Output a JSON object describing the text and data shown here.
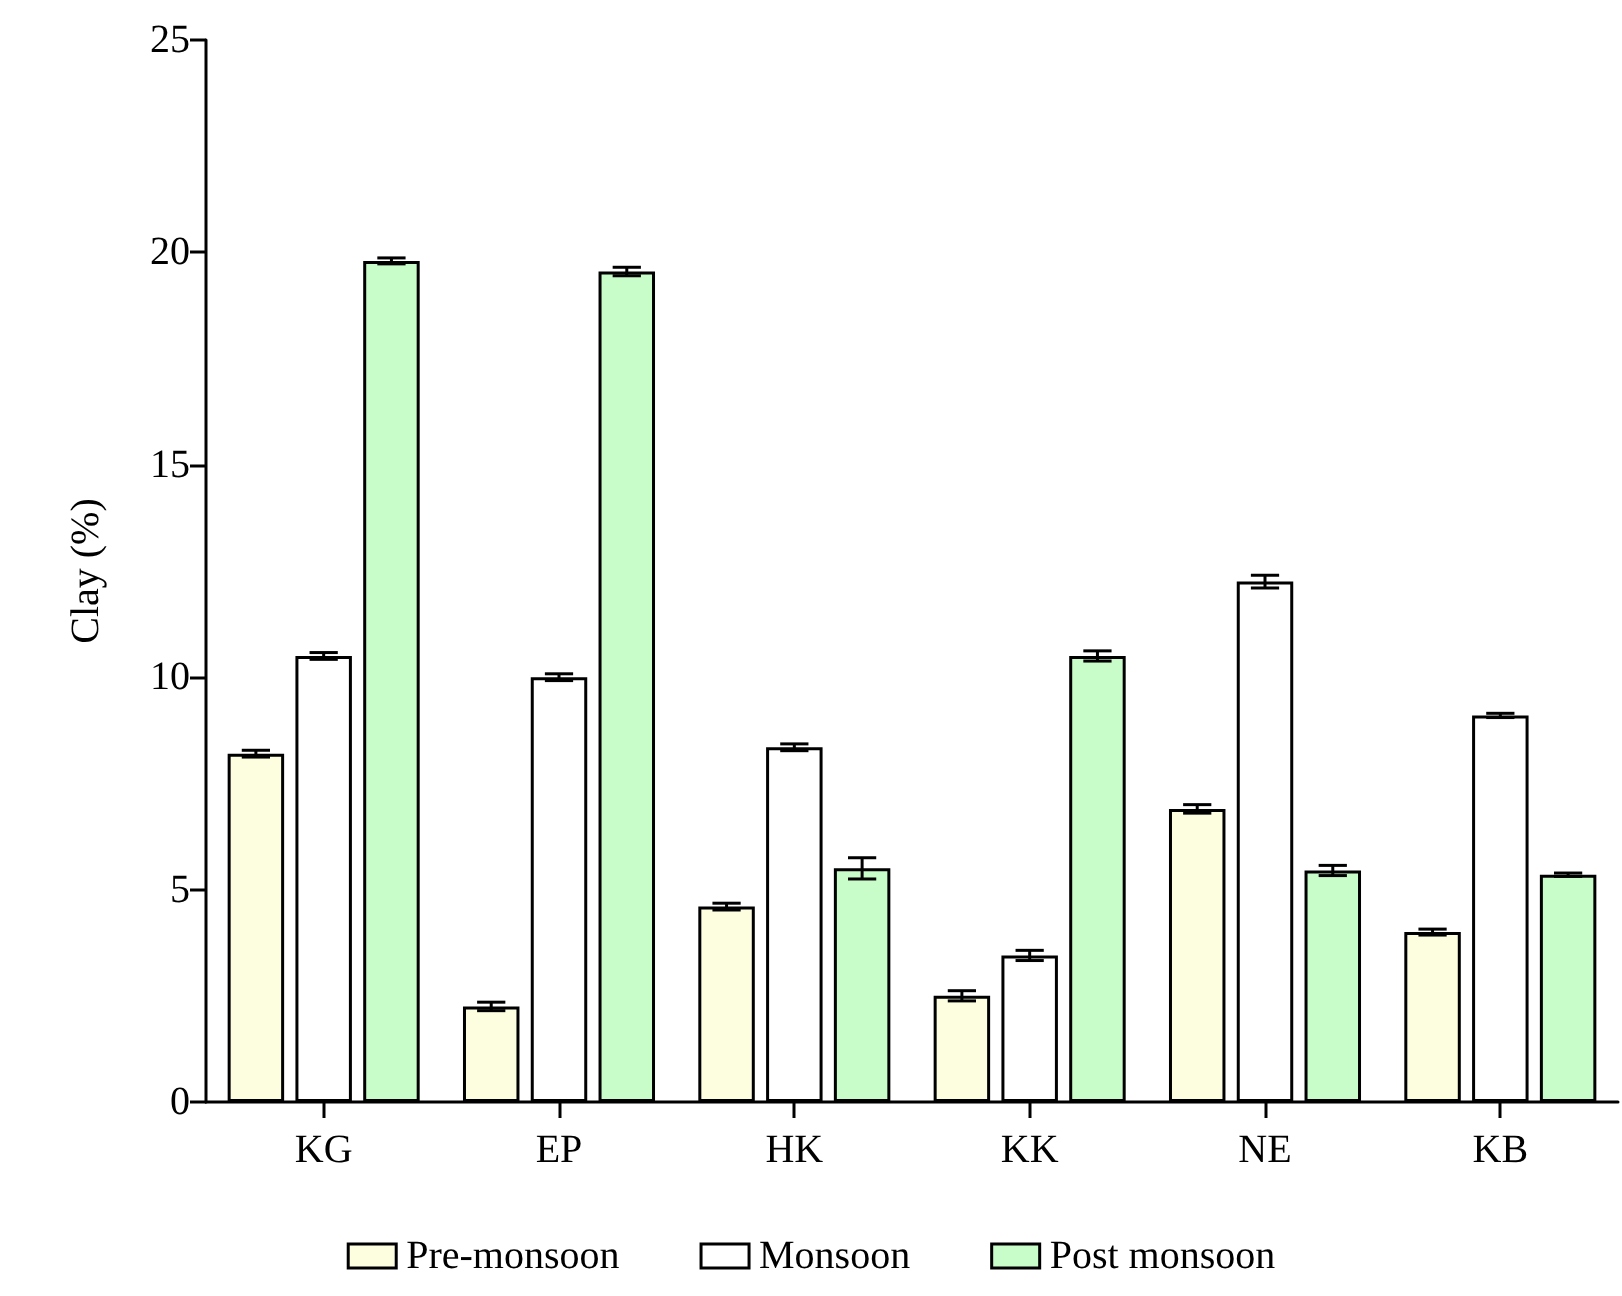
{
  "chart_data": {
    "type": "bar",
    "ylabel": "Clay (%)",
    "categories": [
      "KG",
      "EP",
      "HK",
      "KK",
      "NE",
      "KB"
    ],
    "series": [
      {
        "name": "Pre-monsoon",
        "color": "#fdfde0",
        "values": [
          8.2,
          2.25,
          4.6,
          2.5,
          6.9,
          4.0
        ],
        "errors": [
          0.08,
          0.1,
          0.08,
          0.12,
          0.1,
          0.07
        ]
      },
      {
        "name": "Monsoon",
        "color": "#ffffff",
        "values": [
          10.5,
          10.0,
          8.35,
          3.45,
          12.25,
          9.1
        ],
        "errors": [
          0.08,
          0.08,
          0.08,
          0.12,
          0.15,
          0.05
        ]
      },
      {
        "name": "Post monsoon",
        "color": "#c8fcc8",
        "values": [
          19.8,
          19.55,
          5.5,
          10.5,
          5.45,
          5.35
        ],
        "errors": [
          0.07,
          0.1,
          0.25,
          0.12,
          0.12,
          0.04
        ]
      }
    ],
    "ylim": [
      0,
      25
    ],
    "yticks": [
      0,
      5,
      10,
      15,
      20,
      25
    ],
    "grid": false,
    "legend": "bottom"
  }
}
